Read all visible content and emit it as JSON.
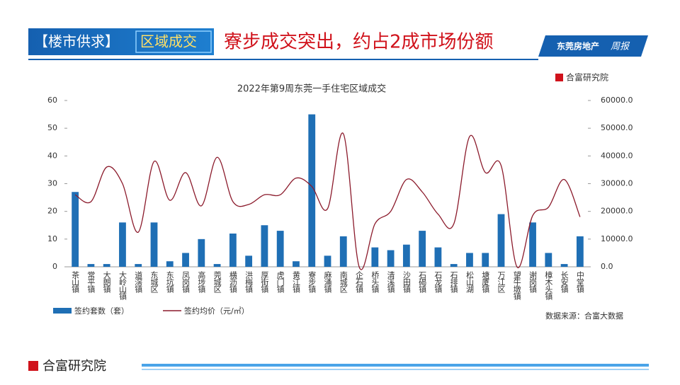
{
  "header": {
    "tag": "【楼市供求】",
    "section": "区域成交",
    "title": "寮步成交突出，约占2成市场份额",
    "brand": "东莞房地产",
    "brand_script": "周报"
  },
  "logo": "合富研究院",
  "footer": "合富研究院",
  "source": "数据来源：合富大数据",
  "chart_data": {
    "type": "bar",
    "title": "2022年第9周东莞一手住宅区域成交",
    "categories": [
      "茶山镇",
      "常平镇",
      "大朗镇",
      "大岭山镇",
      "道滘镇",
      "东城区",
      "东坑镇",
      "凤岗镇",
      "高埗镇",
      "莞城区",
      "横沥镇",
      "洪梅镇",
      "厚街镇",
      "虎门镇",
      "黄江镇",
      "寮步镇",
      "麻涌镇",
      "南城区",
      "企石镇",
      "桥头镇",
      "清溪镇",
      "沙田镇",
      "石碣镇",
      "石龙镇",
      "石排镇",
      "松山湖",
      "塘厦镇",
      "万江区",
      "望牛墩镇",
      "谢岗镇",
      "樟木头镇",
      "长安镇",
      "中堂镇"
    ],
    "series": [
      {
        "name": "签约套数（套）",
        "type": "bar",
        "color": "#1f6fb5",
        "values": [
          27,
          1,
          1,
          16,
          1,
          16,
          2,
          5,
          10,
          1,
          12,
          4,
          15,
          13,
          2,
          55,
          4,
          11,
          0,
          7,
          6,
          8,
          13,
          7,
          1,
          5,
          5,
          19,
          0,
          16,
          5,
          1,
          11
        ]
      },
      {
        "name": "签约均价（元/㎡）",
        "type": "line",
        "axis": "y2",
        "color": "#8b1a2b",
        "values": [
          26000,
          23500,
          36000,
          30000,
          12500,
          38000,
          24000,
          34000,
          22000,
          39500,
          23500,
          22500,
          26000,
          26000,
          32000,
          29000,
          21000,
          48000,
          0,
          15500,
          20000,
          31500,
          27000,
          19000,
          15500,
          47000,
          34000,
          36500,
          0,
          18500,
          21500,
          31500,
          18000
        ]
      }
    ],
    "ylim": [
      0,
      60
    ],
    "yticks": [
      0,
      10,
      20,
      30,
      40,
      50,
      60
    ],
    "y2lim": [
      0,
      60000
    ],
    "y2ticks": [
      {
        "value": 0,
        "label": "0.0"
      },
      {
        "value": 10000,
        "label": "10000.0"
      },
      {
        "value": 20000,
        "label": "20000.0"
      },
      {
        "value": 30000,
        "label": "30000.0"
      },
      {
        "value": 40000,
        "label": "40000.0"
      },
      {
        "value": 50000,
        "label": "50000.0"
      },
      {
        "value": 60000,
        "label": "60000.0"
      }
    ],
    "grid": false
  }
}
